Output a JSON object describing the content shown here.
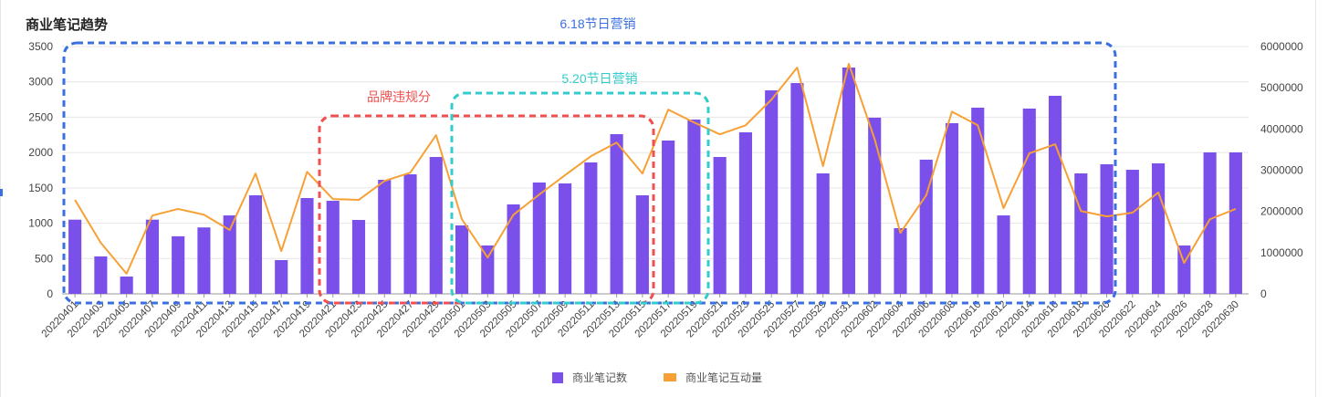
{
  "chart_data": {
    "type": "bar+line",
    "title": "商业笔记趋势",
    "categories": [
      "20220401",
      "20220403",
      "20220405",
      "20220407",
      "20220409",
      "20220411",
      "20220413",
      "20220415",
      "20220417",
      "20220419",
      "20220421",
      "20220423",
      "20220425",
      "20220427",
      "20220429",
      "20220501",
      "20220503",
      "20220505",
      "20220507",
      "20220509",
      "20220511",
      "20220513",
      "20220515",
      "20220517",
      "20220519",
      "20220521",
      "20220523",
      "20220525",
      "20220527",
      "20220529",
      "20220531",
      "20220602",
      "20220604",
      "20220606",
      "20220608",
      "20220610",
      "20220612",
      "20220614",
      "20220616",
      "20220618",
      "20220620",
      "20220622",
      "20220624",
      "20220626",
      "20220628",
      "20220630"
    ],
    "series": [
      {
        "name": "商业笔记数",
        "type": "bar",
        "axis": "left",
        "color": "#7b4fe9",
        "values": [
          1050,
          530,
          245,
          1050,
          815,
          940,
          1110,
          1395,
          478,
          1356,
          1317,
          1046,
          1614,
          1692,
          1937,
          969,
          685,
          1266,
          1576,
          1563,
          1860,
          2260,
          1395,
          2170,
          2467,
          1937,
          2286,
          2880,
          2983,
          1705,
          3203,
          2493,
          930,
          1899,
          2415,
          2635,
          1110,
          2622,
          2803,
          1705,
          1834,
          1756,
          1847,
          685,
          2002,
          2002
        ]
      },
      {
        "name": "商业笔记互动量",
        "type": "line",
        "axis": "right",
        "color": "#f7a035",
        "values": [
          2280000,
          1240000,
          490000,
          1900000,
          2060000,
          1920000,
          1550000,
          2920000,
          1040000,
          2960000,
          2300000,
          2280000,
          2740000,
          2940000,
          3850000,
          1810000,
          880000,
          1920000,
          2410000,
          2880000,
          3340000,
          3670000,
          2920000,
          4470000,
          4160000,
          3870000,
          4090000,
          4710000,
          5490000,
          3100000,
          5580000,
          3760000,
          1480000,
          2390000,
          4420000,
          4090000,
          2080000,
          3410000,
          3630000,
          2010000,
          1880000,
          1970000,
          2460000,
          750000,
          1810000,
          2060000
        ]
      }
    ],
    "y_left": {
      "range": [
        0,
        3500
      ],
      "ticks": [
        "0",
        "500",
        "1000",
        "1500",
        "2000",
        "2500",
        "3000",
        "3500"
      ]
    },
    "y_right": {
      "range": [
        0,
        6000000
      ],
      "ticks": [
        "0",
        "1000000",
        "2000000",
        "3000000",
        "4000000",
        "5000000",
        "6000000"
      ]
    },
    "grid": true,
    "legend_position": "bottom-center",
    "annotations": [
      {
        "label": "6.18节日营销",
        "color": "#3b6fe0",
        "from": "20220401",
        "to": "20220620"
      },
      {
        "label": "品牌违规分",
        "color": "#f0504f",
        "from": "20220421",
        "to": "20220515"
      },
      {
        "label": "5.20节日营销",
        "color": "#33cccc",
        "from": "20220501",
        "to": "20220519"
      }
    ]
  }
}
